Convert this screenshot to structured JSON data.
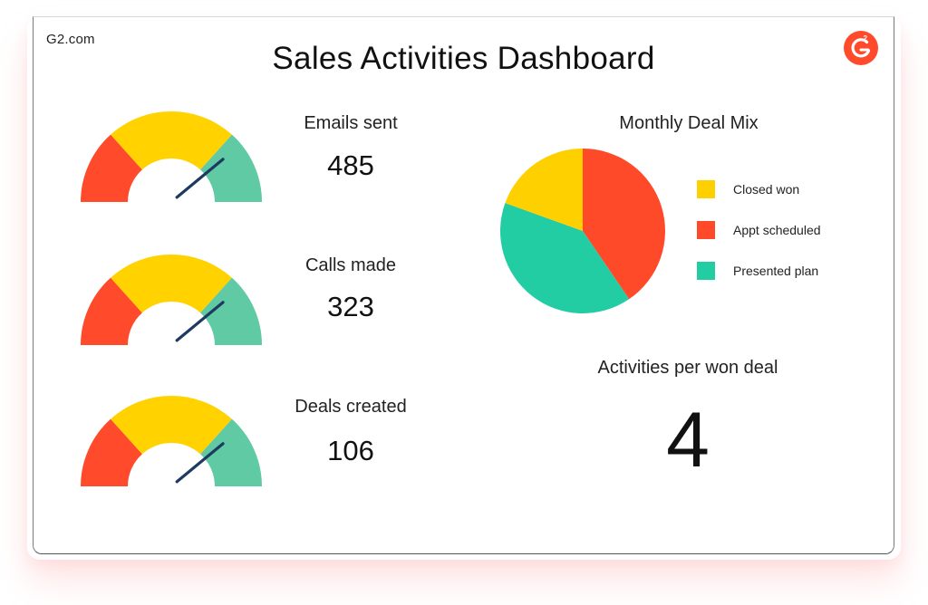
{
  "site": "G2.com",
  "title": "Sales Activities Dashboard",
  "colors": {
    "gauge_low": "#ff4b2b",
    "gauge_mid": "#ffd200",
    "gauge_high": "#5fcaa3",
    "needle": "#1e3a5f",
    "brand": "#ff4b2b",
    "closed_won": "#ffd000",
    "appt_scheduled": "#ff4a2a",
    "presented_plan": "#22cda3"
  },
  "metrics": [
    {
      "label": "Emails sent",
      "value": "485",
      "gauge_level": 0.78
    },
    {
      "label": "Calls made",
      "value": "323",
      "gauge_level": 0.78
    },
    {
      "label": "Deals created",
      "value": "106",
      "gauge_level": 0.78
    }
  ],
  "chart_data": {
    "type": "pie",
    "title": "Monthly Deal Mix",
    "slices": [
      {
        "name": "Appt scheduled",
        "value": 40.5,
        "color": "#ff4a2a"
      },
      {
        "name": "Presented plan",
        "value": 40,
        "color": "#22cda3"
      },
      {
        "name": "Closed won",
        "value": 19.5,
        "color": "#ffd000"
      }
    ],
    "legend": [
      "Closed won",
      "Appt scheduled",
      "Presented plan"
    ],
    "legend_placement": "right"
  },
  "activities_per_won_deal": {
    "label": "Activities per won deal",
    "value": "4"
  }
}
